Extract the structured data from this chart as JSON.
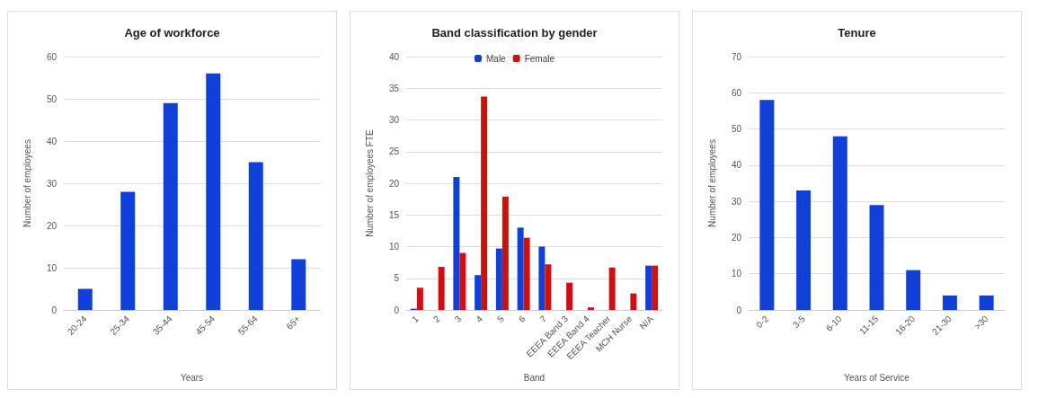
{
  "chart_data": [
    {
      "type": "bar",
      "title": "Age of workforce",
      "xlabel": "Years",
      "ylabel": "Number of employees",
      "categories": [
        "20-24",
        "25-34",
        "35-44",
        "45-54",
        "55-64",
        "65+"
      ],
      "series": [
        {
          "color": "#1040d8",
          "values": [
            5,
            28,
            49,
            56,
            35,
            12
          ]
        }
      ],
      "ylim": [
        0,
        60
      ],
      "yticks": [
        0,
        10,
        20,
        30,
        40,
        50,
        60
      ],
      "grid": "y",
      "legend": false
    },
    {
      "type": "bar",
      "title": "Band classification by gender",
      "xlabel": "Band",
      "ylabel": "Number of employees FTE",
      "categories": [
        "1",
        "2",
        "3",
        "4",
        "5",
        "6",
        "7",
        "EEEA Band 3",
        "EEEA Band 4",
        "EEEA Teacher",
        "MCH Nurse",
        "N/A"
      ],
      "series": [
        {
          "name": "Male",
          "color": "#1040d8",
          "values": [
            0.2,
            0,
            21,
            5.5,
            9.7,
            13,
            10,
            0,
            0,
            0,
            0,
            7
          ]
        },
        {
          "name": "Female",
          "color": "#d01010",
          "values": [
            3.5,
            6.8,
            9,
            33.7,
            17.9,
            11.4,
            7.2,
            4.3,
            0.4,
            6.7,
            2.6,
            7
          ]
        }
      ],
      "ylim": [
        0,
        40
      ],
      "yticks": [
        0,
        5,
        10,
        15,
        20,
        25,
        30,
        35,
        40
      ],
      "grid": "y",
      "legend": "top"
    },
    {
      "type": "bar",
      "title": "Tenure",
      "xlabel": "Years of Service",
      "ylabel": "Number of employees",
      "categories": [
        "0-2",
        "3-5",
        "6-10",
        "11-15",
        "16-20",
        "21-30",
        ">30"
      ],
      "series": [
        {
          "color": "#1040d8",
          "values": [
            58,
            33,
            48,
            29,
            11,
            4,
            4
          ]
        }
      ],
      "ylim": [
        0,
        70
      ],
      "yticks": [
        0,
        10,
        20,
        30,
        40,
        50,
        60,
        70
      ],
      "grid": "y",
      "legend": false
    }
  ]
}
